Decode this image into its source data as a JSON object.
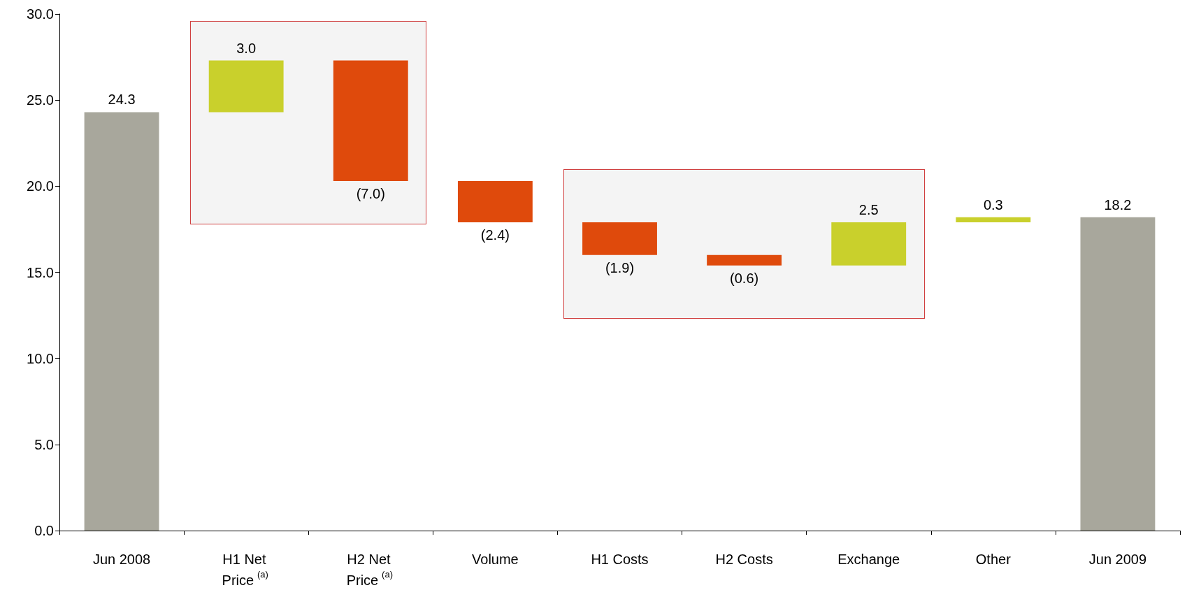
{
  "chart_data": {
    "type": "bar",
    "categories": [
      "Jun 2008",
      "H1 Net Price$^{(a)}$",
      "H2 Net Price$^{(a)}$",
      "Volume",
      "H1 Costs",
      "H2 Costs",
      "Exchange",
      "Other",
      "Jun 2009"
    ],
    "values": [
      24.3,
      3.0,
      -7.0,
      -2.4,
      -1.9,
      -0.6,
      2.5,
      0.3,
      18.2
    ],
    "base": [
      0,
      24.3,
      27.3,
      20.3,
      17.9,
      16.0,
      15.4,
      17.9,
      0
    ],
    "colors": [
      "#a8a79c",
      "#c9d02c",
      "#df4a0c",
      "#df4a0c",
      "#df4a0c",
      "#df4a0c",
      "#c9d02c",
      "#c9d02c",
      "#a8a79c"
    ],
    "value_labels": [
      "24.3",
      "3.0",
      "(7.0)",
      "(2.4)",
      "(1.9)",
      "(0.6)",
      "2.5",
      "0.3",
      "18.2"
    ],
    "ylim": [
      0,
      30
    ],
    "yticks": [
      {
        "value": 0,
        "label": "0.0"
      },
      {
        "value": 5,
        "label": "5.0"
      },
      {
        "value": 10,
        "label": "10.0"
      },
      {
        "value": 15,
        "label": "15.0"
      },
      {
        "value": 20,
        "label": "20.0"
      },
      {
        "value": 25,
        "label": "25.0"
      },
      {
        "value": 30,
        "label": "30.0"
      }
    ],
    "grid": false
  }
}
